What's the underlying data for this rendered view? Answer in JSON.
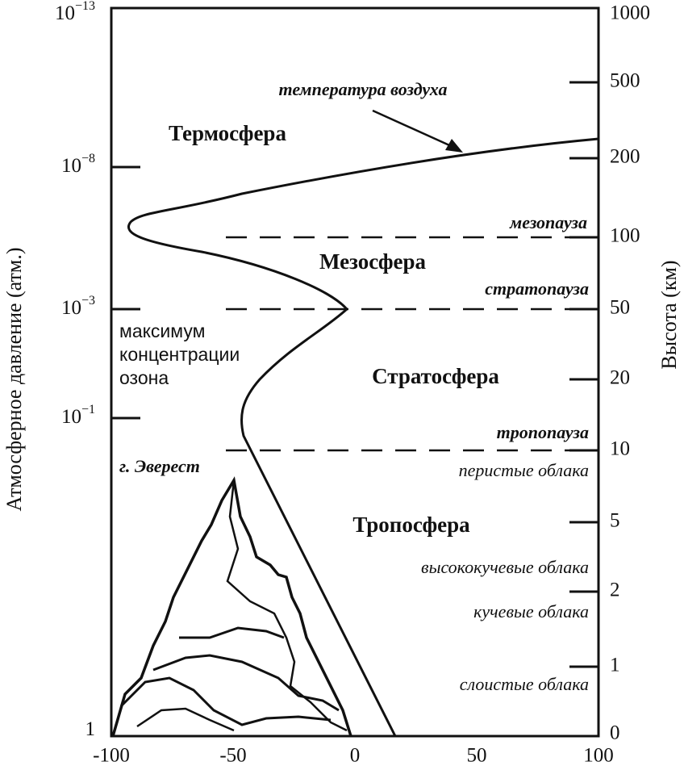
{
  "left_axis": {
    "title": "Атмосферное давление (атм.)",
    "ticks": [
      {
        "base": "10",
        "exponent": "−13"
      },
      {
        "base": "10",
        "exponent": "−8"
      },
      {
        "base": "10",
        "exponent": "−3"
      },
      {
        "base": "10",
        "exponent": "−1"
      },
      {
        "base": "1"
      }
    ]
  },
  "right_axis": {
    "title": "Высота (км)",
    "ticks": [
      "1000",
      "500",
      "200",
      "100",
      "50",
      "20",
      "10",
      "5",
      "2",
      "1",
      "0"
    ]
  },
  "bottom_axis": {
    "ticks": [
      "-100",
      "-50",
      "0",
      "50",
      "100"
    ]
  },
  "labels": {
    "air_temperature": "температура воздуха",
    "thermosphere": "Термосфера",
    "mesopause": "мезопауза",
    "mesosphere": "Мезосфера",
    "stratopause": "стратопауза",
    "ozone_maximum": [
      "максимум",
      "концентрации",
      "озона"
    ],
    "stratosphere": "Стратосфера",
    "tropopause": "тропопауза",
    "everest": "г. Эверест",
    "cirrus": "перистые облака",
    "troposphere": "Тропосфера",
    "altocumulus": "высококучевые облака",
    "cumulus": "кучевые облака",
    "stratus": "слоистые облака"
  }
}
